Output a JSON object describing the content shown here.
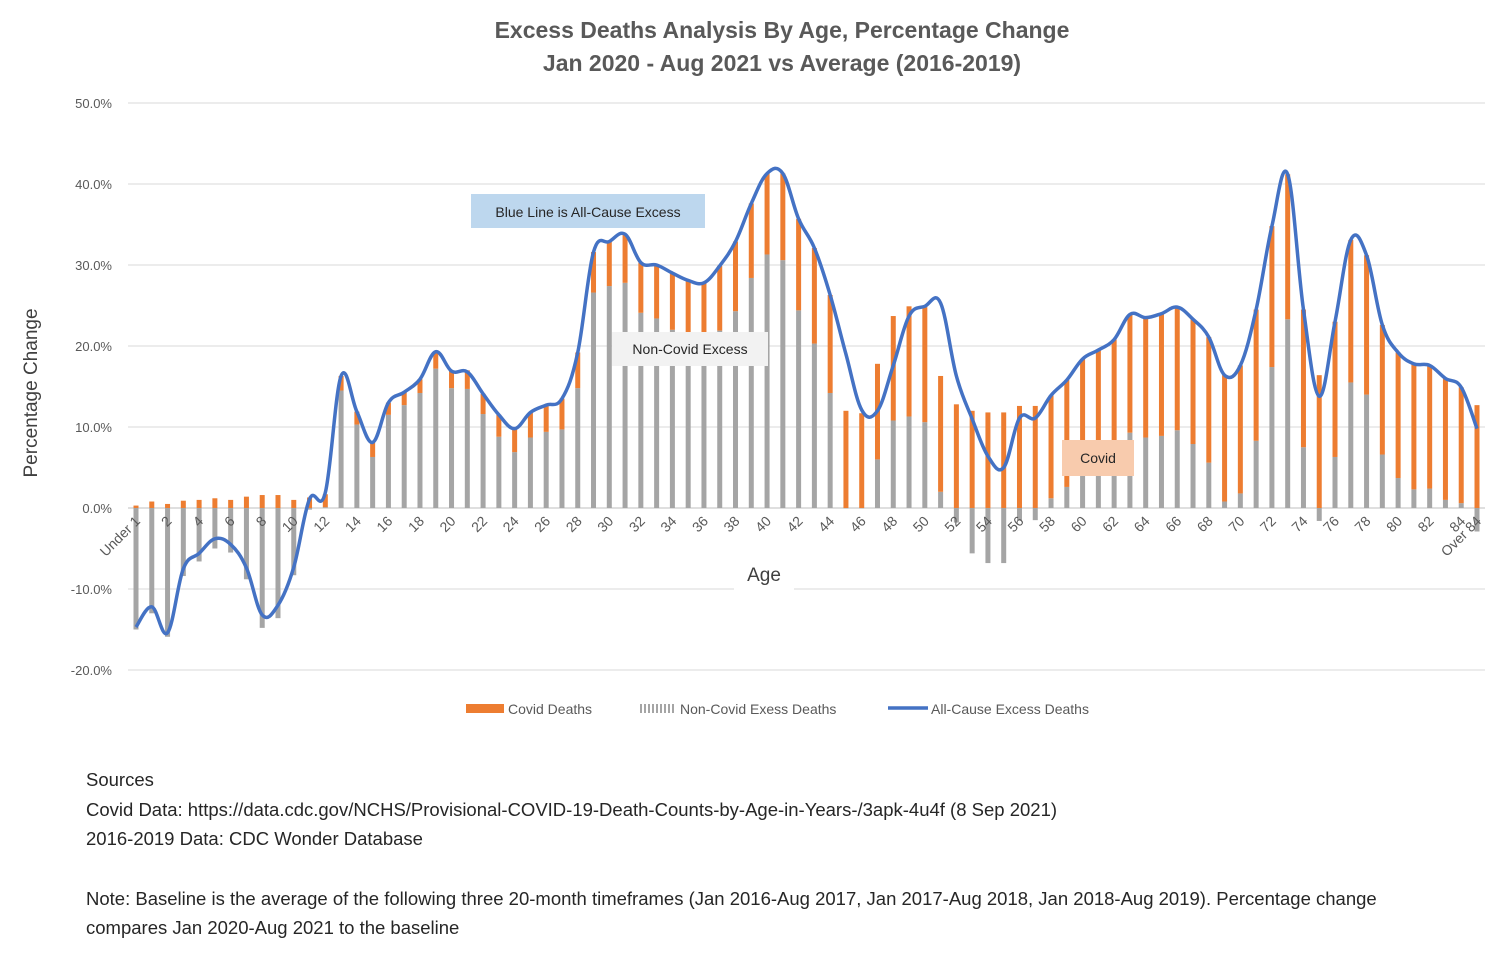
{
  "chart_data": {
    "type": "bar+line",
    "title": "Excess Deaths Analysis By Age, Percentage Change",
    "subtitle": "Jan 2020 - Aug 2021 vs Average (2016-2019)",
    "xlabel": "Age",
    "ylabel": "Percentage Change",
    "ylim": [
      -20,
      50
    ],
    "yticks": [
      "-20.0%",
      "-10.0%",
      "0.0%",
      "10.0%",
      "20.0%",
      "30.0%",
      "40.0%",
      "50.0%"
    ],
    "ytick_values": [
      -20,
      -10,
      0,
      10,
      20,
      30,
      40,
      50
    ],
    "categories": [
      "Under 1",
      "1",
      "2",
      "3",
      "4",
      "5",
      "6",
      "7",
      "8",
      "9",
      "10",
      "11",
      "12",
      "13",
      "14",
      "15",
      "16",
      "17",
      "18",
      "19",
      "20",
      "21",
      "22",
      "23",
      "24",
      "25",
      "26",
      "27",
      "28",
      "29",
      "30",
      "31",
      "32",
      "33",
      "34",
      "35",
      "36",
      "37",
      "38",
      "39",
      "40",
      "41",
      "42",
      "43",
      "44",
      "45",
      "46",
      "47",
      "48",
      "49",
      "50",
      "51",
      "52",
      "53",
      "54",
      "55",
      "56",
      "57",
      "58",
      "59",
      "60",
      "61",
      "62",
      "63",
      "64",
      "65",
      "66",
      "67",
      "68",
      "69",
      "70",
      "71",
      "72",
      "73",
      "74",
      "75",
      "76",
      "77",
      "78",
      "79",
      "80",
      "81",
      "82",
      "83",
      "84",
      "Over 84"
    ],
    "xtick_labels": [
      "Under 1",
      "2",
      "4",
      "6",
      "8",
      "10",
      "12",
      "14",
      "16",
      "18",
      "20",
      "22",
      "24",
      "26",
      "28",
      "30",
      "32",
      "34",
      "36",
      "38",
      "40",
      "42",
      "44",
      "46",
      "48",
      "50",
      "52",
      "54",
      "56",
      "58",
      "60",
      "62",
      "64",
      "66",
      "68",
      "70",
      "72",
      "74",
      "76",
      "78",
      "80",
      "82",
      "84",
      "Over 84"
    ],
    "series": [
      {
        "name": "Covid Deaths",
        "type": "bar",
        "color": "#ED7D31",
        "values": [
          0.3,
          0.8,
          0.5,
          0.9,
          1.0,
          1.2,
          1.0,
          1.4,
          1.6,
          1.6,
          1.0,
          1.3,
          1.6,
          1.8,
          1.6,
          1.8,
          1.5,
          1.6,
          1.7,
          2.1,
          2.1,
          2.3,
          2.5,
          2.7,
          2.9,
          3.1,
          3.3,
          3.8,
          4.4,
          5.0,
          5.5,
          6.0,
          6.2,
          6.6,
          7.0,
          7.3,
          7.6,
          8.0,
          8.6,
          9.2,
          10.0,
          10.7,
          11.3,
          11.8,
          12.1,
          12.0,
          11.7,
          11.8,
          12.9,
          13.6,
          14.2,
          14.3,
          12.8,
          12.0,
          11.8,
          11.8,
          12.6,
          12.6,
          12.7,
          13.2,
          13.4,
          14.0,
          14.4,
          14.6,
          14.8,
          15.1,
          15.2,
          15.4,
          15.5,
          15.6,
          15.8,
          16.2,
          17.4,
          17.9,
          17.0,
          16.4,
          16.7,
          17.6,
          17.2,
          16.0,
          15.5,
          15.5,
          15.2,
          15.0,
          14.3,
          12.7
        ]
      },
      {
        "name": "Non-Covid Exess Deaths",
        "type": "bar",
        "color": "#A5A5A5",
        "values": [
          -15.0,
          -13.0,
          -15.9,
          -8.4,
          -6.6,
          -5.0,
          -5.5,
          -8.8,
          -14.8,
          -13.6,
          -8.3,
          -0.2,
          0.1,
          14.5,
          10.3,
          6.3,
          11.5,
          12.7,
          14.2,
          17.2,
          14.8,
          14.7,
          11.6,
          8.8,
          6.9,
          8.7,
          9.4,
          9.7,
          14.8,
          26.6,
          27.4,
          27.8,
          24.1,
          23.4,
          22.0,
          20.8,
          20.2,
          21.9,
          24.3,
          28.4,
          31.3,
          30.6,
          24.4,
          20.3,
          14.2,
          0.0,
          0.0,
          6.0,
          10.8,
          11.3,
          10.6,
          2.0,
          -1.8,
          -5.6,
          -6.8,
          -6.8,
          -1.5,
          -1.5,
          1.2,
          2.6,
          5.0,
          5.5,
          6.4,
          9.3,
          8.7,
          8.9,
          9.6,
          7.9,
          5.6,
          0.8,
          1.8,
          8.3,
          17.4,
          23.3,
          7.5,
          -1.6,
          6.3,
          15.5,
          14.0,
          6.6,
          3.7,
          2.3,
          2.4,
          1.0,
          0.6,
          -2.9
        ]
      },
      {
        "name": "All-Cause Excess Deaths",
        "type": "line",
        "color": "#4472C4",
        "values": [
          -14.7,
          -12.2,
          -15.4,
          -7.5,
          -5.6,
          -3.8,
          -4.5,
          -7.4,
          -13.2,
          -12.0,
          -7.3,
          1.1,
          1.9,
          16.3,
          11.9,
          8.1,
          13.0,
          14.3,
          15.9,
          19.3,
          16.9,
          16.8,
          14.1,
          11.5,
          9.8,
          11.8,
          12.7,
          13.5,
          19.2,
          31.6,
          32.9,
          33.8,
          30.3,
          30.0,
          29.0,
          28.1,
          27.8,
          29.9,
          32.9,
          37.6,
          41.3,
          41.3,
          35.7,
          32.1,
          26.3,
          19.0,
          12.1,
          12.0,
          17.6,
          23.7,
          24.9,
          25.3,
          16.3,
          11.0,
          6.4,
          5.0,
          11.1,
          11.1,
          13.9,
          15.8,
          18.4,
          19.5,
          20.8,
          23.9,
          23.5,
          24.0,
          24.8,
          23.3,
          21.1,
          16.4,
          17.6,
          24.5,
          34.8,
          41.2,
          24.5,
          13.8,
          23.0,
          33.1,
          31.2,
          22.6,
          19.2,
          17.8,
          17.6,
          16.0,
          14.9,
          9.8
        ]
      }
    ],
    "legend": {
      "position": "bottom",
      "entries": [
        "Covid Deaths",
        "Non-Covid Exess Deaths",
        "All-Cause Excess Deaths"
      ]
    },
    "annotations": [
      "Blue Line is All-Cause Excess",
      "Non-Covid Excess",
      "Covid"
    ],
    "grid": true
  },
  "annotation_colors": {
    "blue_box": "#BDD7EE",
    "covid_box": "#F8CBAD",
    "nc_box": "#F2F2F2"
  },
  "notes": {
    "sources_heading": "Sources",
    "covid_data": "Covid Data: https://data.cdc.gov/NCHS/Provisional-COVID-19-Death-Counts-by-Age-in-Years-/3apk-4u4f  (8 Sep 2021)",
    "baseline_data": "2016-2019 Data: CDC Wonder Database",
    "note_line1": "Note:  Baseline is the average of the following three 20-month timeframes (Jan 2016-Aug 2017, Jan 2017-Aug 2018, Jan 2018-Aug 2019).  Percentage change",
    "note_line2": "compares Jan 2020-Aug 2021 to the baseline"
  }
}
